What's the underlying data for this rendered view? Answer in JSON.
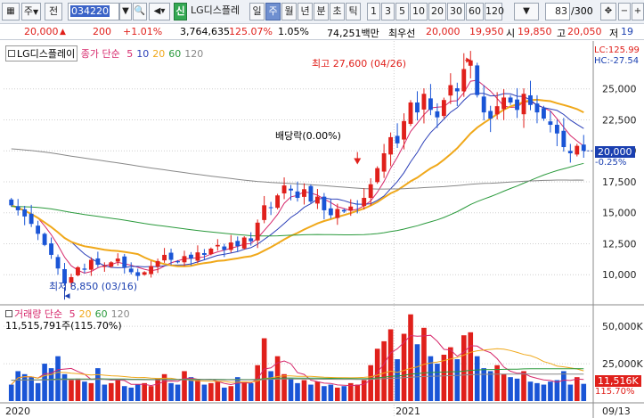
{
  "toolbar": {
    "market": "주",
    "prev_label": "전",
    "stock_code": "034220",
    "signal_badge": "신",
    "stock_name": "LG디스플레",
    "periods": [
      "일",
      "주",
      "월",
      "년",
      "분",
      "초",
      "틱"
    ],
    "selected_period": "주",
    "intervals": [
      "1",
      "3",
      "5",
      "10",
      "20",
      "30",
      "60",
      "120"
    ],
    "count": "83",
    "count_total": "/300"
  },
  "quote": {
    "price": "20,000",
    "change": "200",
    "change_pct": "+1.01%",
    "volume": "3,764,635",
    "volume_ratio": "125.07%",
    "turnover": "1.05%",
    "amount": "74,251백만",
    "best_label": "최우선",
    "best_ask": "20,000",
    "best_bid": "19,950",
    "open_label": "시",
    "open": "19,850",
    "high_label": "고",
    "high": "20,050",
    "low_label": "저",
    "low": "19"
  },
  "price_panel": {
    "legend_name": "LG디스플레이",
    "legend_ma": "종가 단순",
    "ma_periods": [
      "5",
      "10",
      "20",
      "60",
      "120"
    ],
    "ma_colors": [
      "#d6286b",
      "#2b3fb8",
      "#f0a81a",
      "#2a9a3c",
      "#888888"
    ],
    "lc_label": "LC:125.99",
    "hc_label": "HC:-27.54",
    "current_price_label": "20,000",
    "current_change_label": "-0.25%",
    "y_ticks": [
      "25,000",
      "22,500",
      "20,000",
      "17,500",
      "15,000",
      "12,500",
      "10,000"
    ],
    "high_annotation": "최고 27,600 (04/26)",
    "low_annotation": "최저 8,850 (03/16)",
    "dividend_annotation": "배당락(0.00%)"
  },
  "volume_panel": {
    "legend_name": "거래량",
    "legend_ma": "단순",
    "ma_periods": [
      "5",
      "20",
      "60",
      "120"
    ],
    "info": "11,515,791주(115.70%)",
    "y_ticks": [
      "50,000K",
      "25,000K"
    ],
    "current_label": "11,516K",
    "current_pct": "115.70%"
  },
  "x_axis": {
    "labels": [
      "2020",
      "2021",
      "09/13"
    ]
  },
  "chart_data": [
    {
      "type": "candlestick",
      "title": "LG디스플레이",
      "ylim": [
        8000,
        28000
      ],
      "high": 27600,
      "low": 8850,
      "last": 20000,
      "closes": [
        15600,
        15200,
        14700,
        14100,
        13300,
        12400,
        11600,
        10500,
        9300,
        9800,
        10600,
        10400,
        11200,
        10800,
        10700,
        11000,
        11300,
        10600,
        10200,
        9900,
        10200,
        10700,
        11100,
        11600,
        11200,
        11000,
        11500,
        11300,
        11800,
        11600,
        12100,
        12400,
        12000,
        12600,
        12300,
        13000,
        12700,
        14200,
        15600,
        15400,
        16400,
        17200,
        16800,
        16200,
        16900,
        15900,
        16300,
        15200,
        14800,
        15300,
        15100,
        15500,
        15700,
        16200,
        17300,
        18600,
        19800,
        21100,
        20600,
        22400,
        23900,
        23100,
        24600,
        23300,
        22700,
        24100,
        25300,
        24800,
        26600,
        27300,
        24500,
        23100,
        22600,
        23600,
        24300,
        23900,
        23300,
        24600,
        23700,
        23100,
        22600,
        22100,
        21400,
        20300,
        19800,
        20400,
        20000
      ],
      "volume_k": [
        11000,
        20000,
        18000,
        16000,
        12000,
        25000,
        22000,
        30000,
        18000,
        14000,
        15000,
        13000,
        12000,
        22000,
        11000,
        12000,
        14000,
        10000,
        9000,
        11000,
        12000,
        10000,
        15000,
        18000,
        12000,
        11000,
        20000,
        16000,
        14000,
        11000,
        12000,
        13000,
        9000,
        10000,
        16000,
        13000,
        12000,
        24000,
        42000,
        20000,
        30000,
        18000,
        15000,
        12000,
        14000,
        11000,
        13000,
        10000,
        11000,
        9000,
        10000,
        12000,
        11000,
        14000,
        24000,
        35000,
        40000,
        48000,
        28000,
        45000,
        58000,
        38000,
        49000,
        30000,
        25000,
        31000,
        36000,
        28000,
        44000,
        46000,
        30000,
        22000,
        20000,
        24000,
        18000,
        16000,
        15000,
        20000,
        13000,
        12000,
        11000,
        13000,
        14000,
        20000,
        11000,
        16000,
        11516
      ]
    }
  ]
}
